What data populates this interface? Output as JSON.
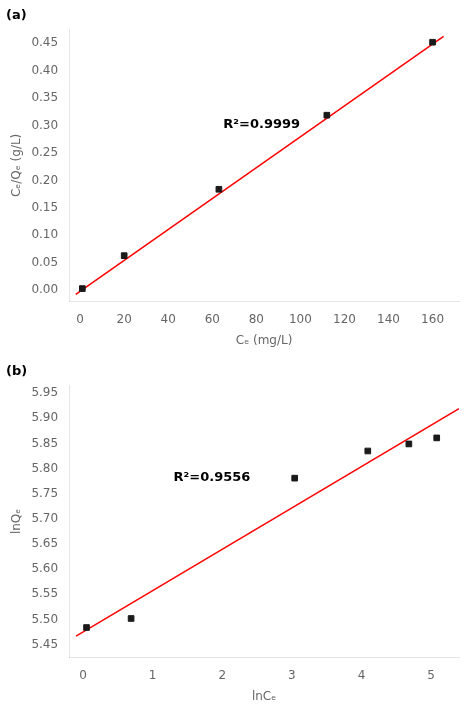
{
  "chart_data": [
    {
      "type": "scatter",
      "title": "(a)",
      "xlabel": "Cₑ (mg/L)",
      "ylabel": "Cₑ/Qₑ (g/L)",
      "xlim": [
        -5,
        172
      ],
      "ylim": [
        -0.02,
        0.475
      ],
      "xticks": [
        0,
        20,
        40,
        60,
        80,
        100,
        120,
        140,
        160
      ],
      "yticks": [
        {
          "value": 0,
          "label": "0.00"
        },
        {
          "value": 0.05,
          "label": "0.05"
        },
        {
          "value": 0.1,
          "label": "0.10"
        },
        {
          "value": 0.15,
          "label": "0.15"
        },
        {
          "value": 0.2,
          "label": "0.20"
        },
        {
          "value": 0.25,
          "label": "0.25"
        },
        {
          "value": 0.3,
          "label": "0.30"
        },
        {
          "value": 0.35,
          "label": "0.35"
        },
        {
          "value": 0.4,
          "label": "0.40"
        },
        {
          "value": 0.45,
          "label": "0.45"
        }
      ],
      "grid": false,
      "series": [
        {
          "type": "line",
          "color": "#FF0000",
          "line_style": "solid",
          "x": [
            -2,
            165
          ],
          "values": [
            -0.007634,
            0.462805
          ]
        },
        {
          "type": "scatter",
          "color": "#1a1a1a",
          "marker": "square",
          "x": [
            1,
            20,
            63,
            112,
            160
          ],
          "values": [
            0.003,
            0.063,
            0.184,
            0.319,
            0.452
          ]
        }
      ],
      "annotations": [
        {
          "text": "R²=0.9999",
          "x": 65,
          "y": 0.295
        }
      ]
    },
    {
      "type": "scatter",
      "title": "(b)",
      "xlabel": "lnCₑ",
      "ylabel": "lnQₑ",
      "xlim": [
        -0.2,
        5.4
      ],
      "ylim": [
        5.425,
        5.965
      ],
      "xticks": [
        0,
        1,
        2,
        3,
        4,
        5
      ],
      "yticks": [
        {
          "value": 5.45,
          "label": "5.45"
        },
        {
          "value": 5.5,
          "label": "5.50"
        },
        {
          "value": 5.55,
          "label": "5.55"
        },
        {
          "value": 5.6,
          "label": "5.60"
        },
        {
          "value": 5.65,
          "label": "5.65"
        },
        {
          "value": 5.7,
          "label": "5.70"
        },
        {
          "value": 5.75,
          "label": "5.75"
        },
        {
          "value": 5.8,
          "label": "5.80"
        },
        {
          "value": 5.85,
          "label": "5.85"
        },
        {
          "value": 5.9,
          "label": "5.90"
        },
        {
          "value": 5.95,
          "label": "5.95"
        }
      ],
      "grid": false,
      "series": [
        {
          "type": "line",
          "color": "#FF0000",
          "line_style": "solid",
          "x": [
            -0.1,
            5.4
          ],
          "values": [
            5.46677,
            5.91942
          ]
        },
        {
          "type": "scatter",
          "color": "#1a1a1a",
          "marker": "square",
          "x": [
            0.05,
            0.69,
            3.04,
            4.09,
            4.68,
            5.08
          ],
          "values": [
            5.484,
            5.502,
            5.781,
            5.835,
            5.849,
            5.861
          ]
        }
      ],
      "annotations": [
        {
          "text": "R²=0.9556",
          "x": 1.3,
          "y": 5.775
        }
      ]
    }
  ]
}
